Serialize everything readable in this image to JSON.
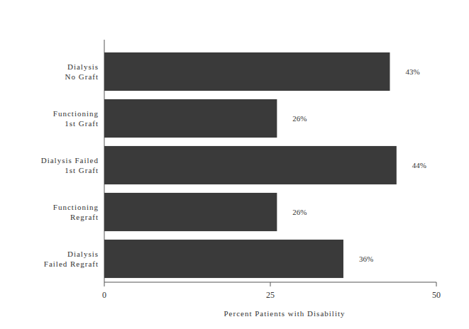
{
  "chart_data": {
    "type": "bar",
    "orientation": "horizontal",
    "categories": [
      "Dialysis No Graft",
      "Functioning 1st Graft",
      "Dialysis Failed 1st Graft",
      "Functioning Regraft",
      "Dialysis Failed Regraft"
    ],
    "values": [
      43,
      26,
      44,
      26,
      36
    ],
    "value_labels": [
      "43%",
      "26%",
      "44%",
      "26%",
      "36%"
    ],
    "data_labels": true,
    "color": "#3a3a3a",
    "x_label": "Percent Patients with Disability",
    "xlim": [
      0,
      50
    ],
    "xticks": [
      0,
      25,
      50
    ],
    "grid": false
  }
}
